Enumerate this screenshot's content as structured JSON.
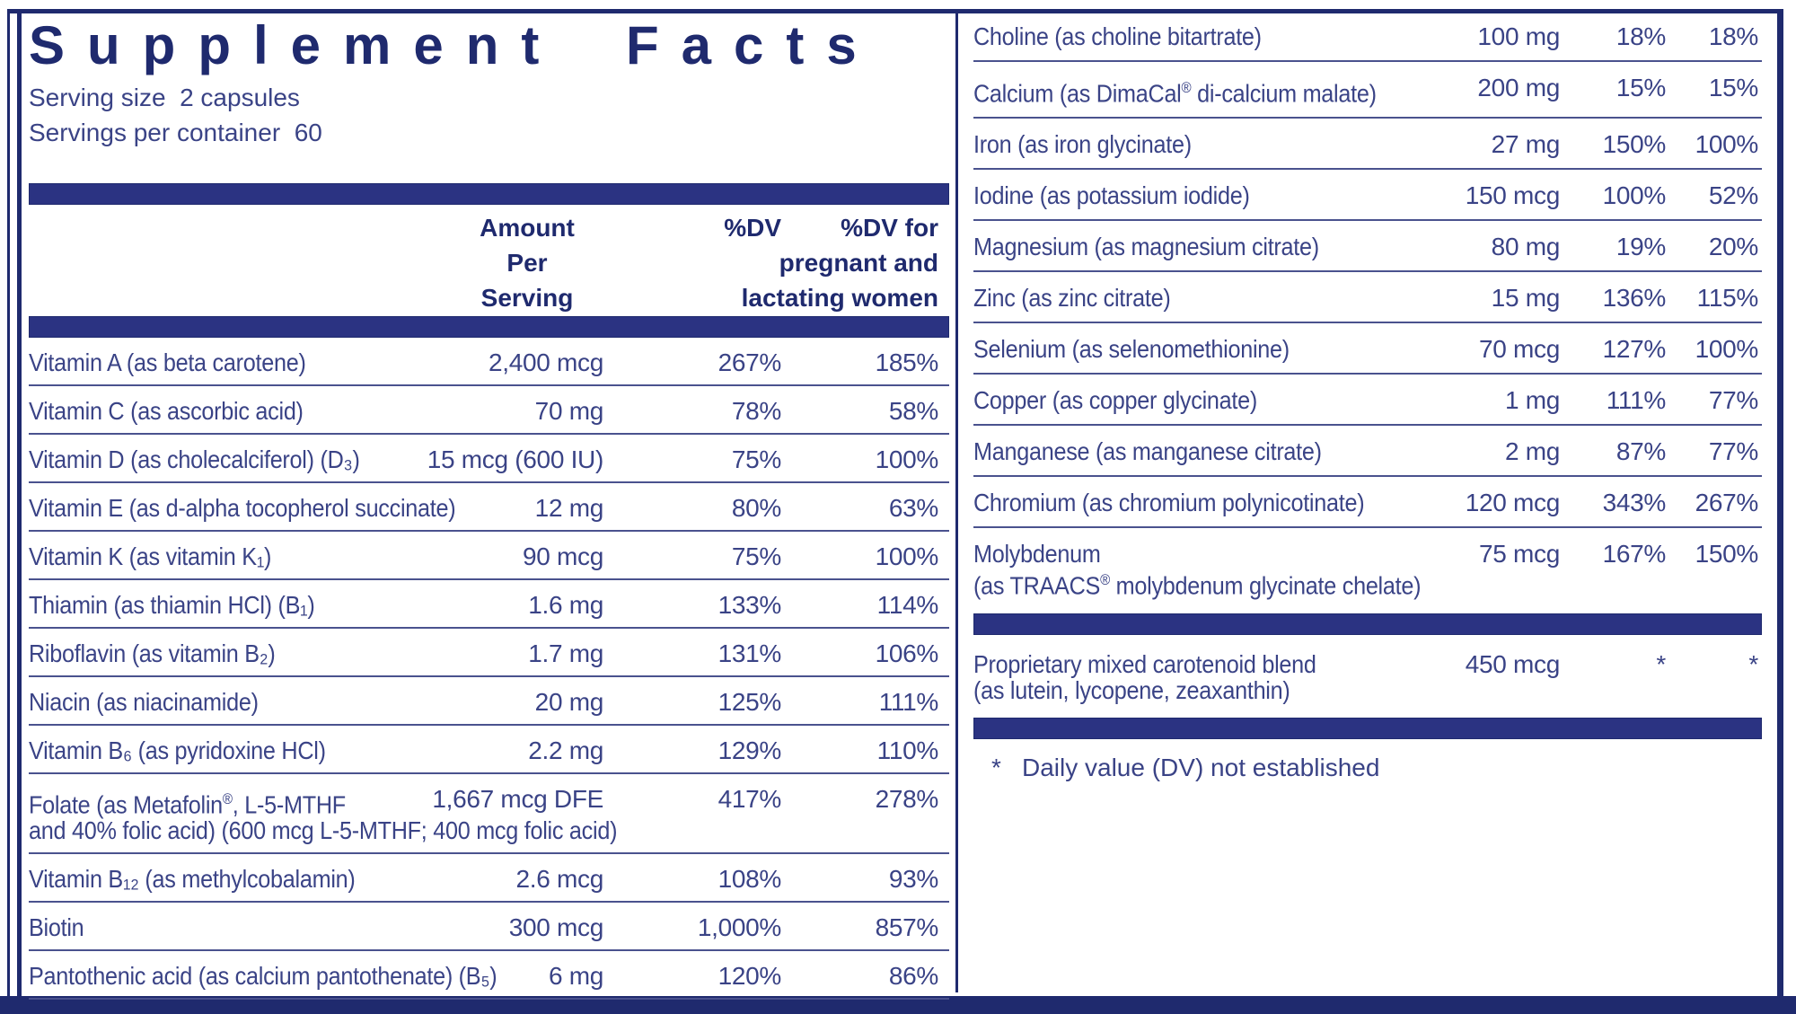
{
  "title": "Supplement Facts",
  "serving": {
    "size": "Serving size  2 capsules",
    "per_container": "Servings per container  60"
  },
  "columns": {
    "amount": "Amount\nPer\nServing",
    "dv": "%DV",
    "dv_pregnant": "%DV for\npregnant and\nlactating women"
  },
  "left_rows": [
    {
      "name": "Vitamin A (as beta carotene)",
      "amount": "2,400 mcg",
      "dv": "267%",
      "pdv": "185%"
    },
    {
      "name": "Vitamin C (as ascorbic acid)",
      "amount": "70 mg",
      "dv": "78%",
      "pdv": "58%"
    },
    {
      "name": "Vitamin D (as cholecalciferol) (D₃)",
      "amount": "15 mcg (600 IU)",
      "dv": "75%",
      "pdv": "100%"
    },
    {
      "name": "Vitamin E (as d-alpha tocopherol succinate)",
      "amount": "12 mg",
      "dv": "80%",
      "pdv": "63%"
    },
    {
      "name": "Vitamin K (as vitamin K₁)",
      "amount": "90 mcg",
      "dv": "75%",
      "pdv": "100%"
    },
    {
      "name": "Thiamin (as thiamin HCl) (B₁)",
      "amount": "1.6 mg",
      "dv": "133%",
      "pdv": "114%"
    },
    {
      "name": "Riboflavin (as vitamin B₂)",
      "amount": "1.7 mg",
      "dv": "131%",
      "pdv": "106%"
    },
    {
      "name": "Niacin (as niacinamide)",
      "amount": "20 mg",
      "dv": "125%",
      "pdv": "111%"
    },
    {
      "name": "Vitamin B₆ (as pyridoxine HCl)",
      "amount": "2.2 mg",
      "dv": "129%",
      "pdv": "110%"
    },
    {
      "name": "Folate (as Metafolin®, L-5-MTHF",
      "name2": "and 40% folic acid) (600 mcg L-5-MTHF; 400 mcg folic acid)",
      "amount": "1,667 mcg DFE",
      "dv": "417%",
      "pdv": "278%"
    },
    {
      "name": "Vitamin B₁₂ (as methylcobalamin)",
      "amount": "2.6 mcg",
      "dv": "108%",
      "pdv": "93%"
    },
    {
      "name": "Biotin",
      "amount": "300 mcg",
      "dv": "1,000%",
      "pdv": "857%"
    },
    {
      "name": "Pantothenic acid (as calcium pantothenate) (B₅)",
      "amount": "6 mg",
      "dv": "120%",
      "pdv": "86%"
    }
  ],
  "right_rows": [
    {
      "name": "Choline (as choline bitartrate)",
      "amount": "100 mg",
      "dv": "18%",
      "pdv": "18%"
    },
    {
      "name": "Calcium (as DimaCal® di-calcium malate)",
      "amount": "200 mg",
      "dv": "15%",
      "pdv": "15%"
    },
    {
      "name": "Iron (as iron glycinate)",
      "amount": "27 mg",
      "dv": "150%",
      "pdv": "100%"
    },
    {
      "name": "Iodine (as potassium iodide)",
      "amount": "150 mcg",
      "dv": "100%",
      "pdv": "52%"
    },
    {
      "name": "Magnesium (as magnesium citrate)",
      "amount": "80 mg",
      "dv": "19%",
      "pdv": "20%"
    },
    {
      "name": "Zinc (as zinc citrate)",
      "amount": "15 mg",
      "dv": "136%",
      "pdv": "115%"
    },
    {
      "name": "Selenium (as selenomethionine)",
      "amount": "70 mcg",
      "dv": "127%",
      "pdv": "100%"
    },
    {
      "name": "Copper (as copper glycinate)",
      "amount": "1 mg",
      "dv": "111%",
      "pdv": "77%"
    },
    {
      "name": "Manganese (as manganese citrate)",
      "amount": "2 mg",
      "dv": "87%",
      "pdv": "77%"
    },
    {
      "name": "Chromium (as chromium polynicotinate)",
      "amount": "120 mcg",
      "dv": "343%",
      "pdv": "267%"
    },
    {
      "name": "Molybdenum",
      "name2": "(as TRAACS® molybdenum glycinate chelate)",
      "amount": "75 mcg",
      "dv": "167%",
      "pdv": "150%",
      "rule": false,
      "bar_after": true
    },
    {
      "name": "Proprietary mixed carotenoid blend",
      "name2": "(as lutein, lycopene, zeaxanthin)",
      "amount": "450 mcg",
      "dv": "*",
      "pdv": "*",
      "rule": false,
      "bar_after": true
    }
  ],
  "footnote": {
    "marker": "*",
    "text": "Daily value (DV) not established"
  },
  "colors": {
    "navy_dark": "#1f2a6e",
    "navy_bar": "#2b3382",
    "body_text": "#3a4386",
    "hairline": "#4a528e",
    "background": "#ffffff"
  }
}
